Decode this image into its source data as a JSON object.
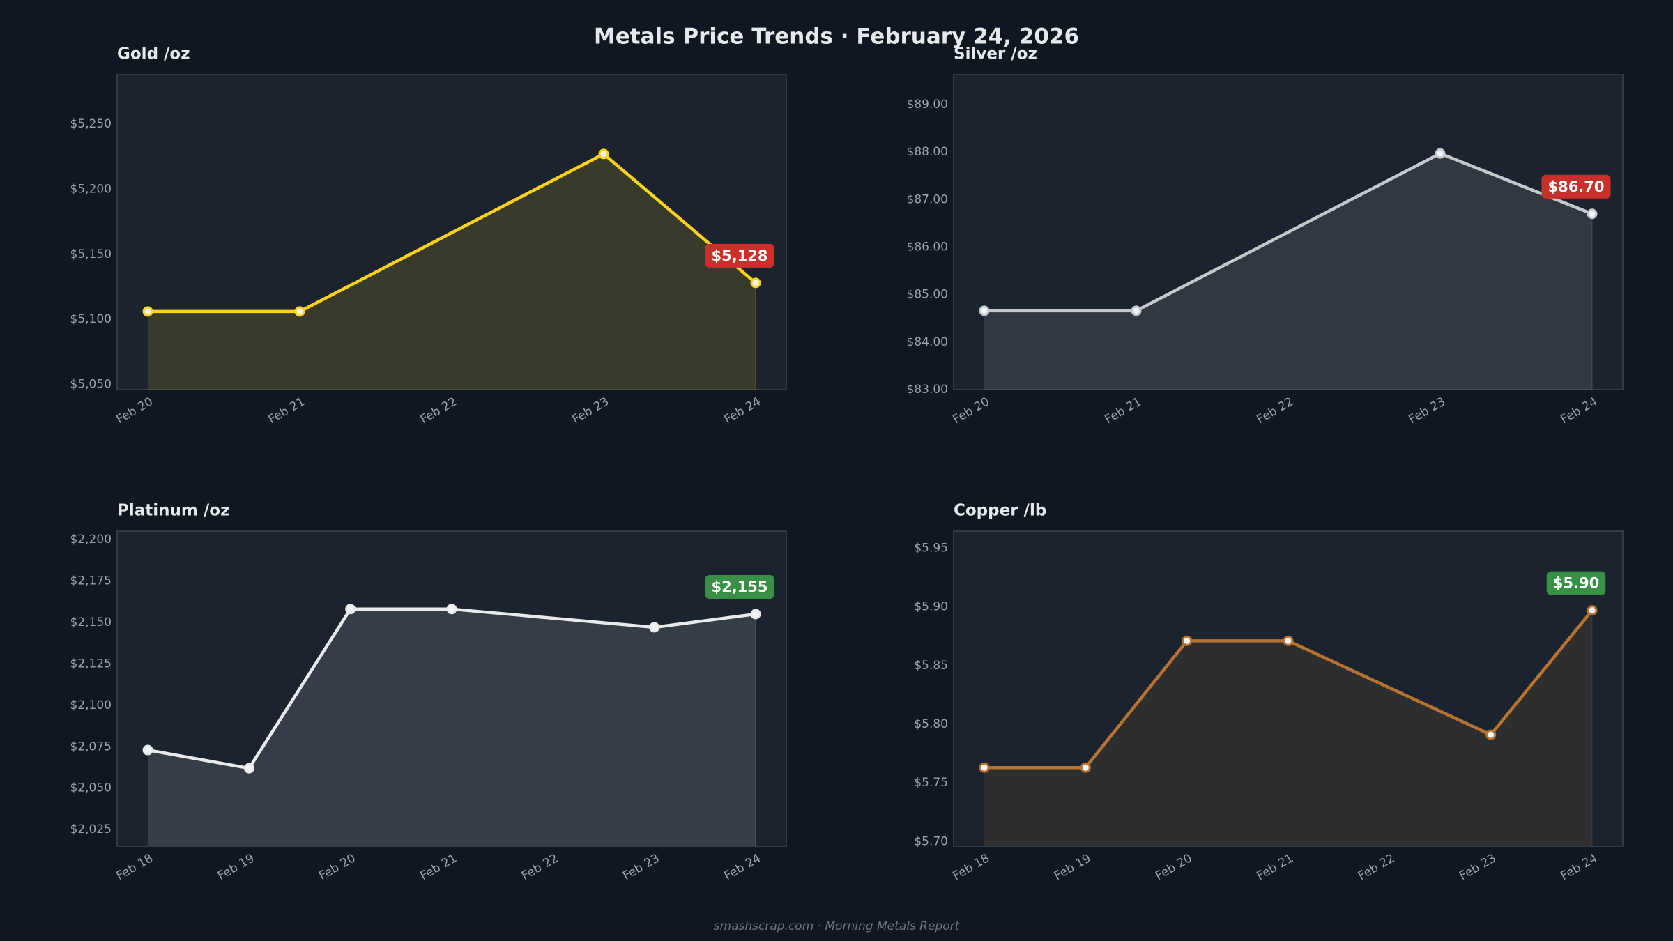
{
  "title": "Metals Price Trends  ·  February 24, 2026",
  "footer": "smashscrap.com  ·  Morning Metals Report",
  "chart_data": [
    {
      "type": "line",
      "title": "Gold  /oz",
      "color": "#ffd21a",
      "badge_color": "#c9302c",
      "xticks": [
        "Feb 20",
        "Feb 21",
        "Feb 22",
        "Feb 23",
        "Feb 24"
      ],
      "x": [
        "Feb 20",
        "Feb 21",
        "Feb 23",
        "Feb 24"
      ],
      "values": [
        5106,
        5106,
        5227,
        5128
      ],
      "value_labels": [
        null,
        null,
        null,
        "$5,128"
      ],
      "ylim": [
        5046,
        5288
      ],
      "yticks": [
        {
          "value": 5050,
          "label": "$5,050"
        },
        {
          "value": 5100,
          "label": "$5,100"
        },
        {
          "value": 5150,
          "label": "$5,150"
        },
        {
          "value": 5200,
          "label": "$5,200"
        },
        {
          "value": 5250,
          "label": "$5,250"
        }
      ]
    },
    {
      "type": "line",
      "title": "Silver  /oz",
      "color": "#c4c8cc",
      "badge_color": "#c9302c",
      "xticks": [
        "Feb 20",
        "Feb 21",
        "Feb 22",
        "Feb 23",
        "Feb 24"
      ],
      "x": [
        "Feb 20",
        "Feb 21",
        "Feb 23",
        "Feb 24"
      ],
      "values": [
        84.66,
        84.66,
        87.97,
        86.7
      ],
      "value_labels": [
        null,
        null,
        null,
        "$86.70"
      ],
      "ylim": [
        83,
        89.63
      ],
      "yticks": [
        {
          "value": 83,
          "label": "$83.00"
        },
        {
          "value": 84,
          "label": "$84.00"
        },
        {
          "value": 85,
          "label": "$85.00"
        },
        {
          "value": 86,
          "label": "$86.00"
        },
        {
          "value": 87,
          "label": "$87.00"
        },
        {
          "value": 88,
          "label": "$88.00"
        },
        {
          "value": 89,
          "label": "$89.00"
        }
      ]
    },
    {
      "type": "line",
      "title": "Platinum  /oz",
      "color": "#e8eaec",
      "badge_color": "#3a8f47",
      "xticks": [
        "Feb 18",
        "Feb 19",
        "Feb 20",
        "Feb 21",
        "Feb 22",
        "Feb 23",
        "Feb 24"
      ],
      "x": [
        "Feb 18",
        "Feb 19",
        "Feb 20",
        "Feb 21",
        "Feb 23",
        "Feb 24"
      ],
      "values": [
        2073,
        2062,
        2158,
        2158,
        2147,
        2155
      ],
      "value_labels": [
        null,
        null,
        null,
        null,
        null,
        "$2,155"
      ],
      "ylim": [
        2015,
        2205
      ],
      "yticks": [
        {
          "value": 2025,
          "label": "$2,025"
        },
        {
          "value": 2050,
          "label": "$2,050"
        },
        {
          "value": 2075,
          "label": "$2,075"
        },
        {
          "value": 2100,
          "label": "$2,100"
        },
        {
          "value": 2125,
          "label": "$2,125"
        },
        {
          "value": 2150,
          "label": "$2,150"
        },
        {
          "value": 2175,
          "label": "$2,175"
        },
        {
          "value": 2200,
          "label": "$2,200"
        }
      ]
    },
    {
      "type": "line",
      "title": "Copper  /lb",
      "color": "#b87333",
      "badge_color": "#3a8f47",
      "xticks": [
        "Feb 18",
        "Feb 19",
        "Feb 20",
        "Feb 21",
        "Feb 22",
        "Feb 23",
        "Feb 24"
      ],
      "x": [
        "Feb 18",
        "Feb 19",
        "Feb 20",
        "Feb 21",
        "Feb 23",
        "Feb 24"
      ],
      "values": [
        5.763,
        5.763,
        5.871,
        5.871,
        5.791,
        5.897
      ],
      "value_labels": [
        null,
        null,
        null,
        null,
        null,
        "$5.90"
      ],
      "ylim": [
        5.696,
        5.9645
      ],
      "yticks": [
        {
          "value": 5.7,
          "label": "$5.70"
        },
        {
          "value": 5.75,
          "label": "$5.75"
        },
        {
          "value": 5.8,
          "label": "$5.80"
        },
        {
          "value": 5.85,
          "label": "$5.85"
        },
        {
          "value": 5.9,
          "label": "$5.90"
        },
        {
          "value": 5.95,
          "label": "$5.95"
        }
      ]
    }
  ]
}
